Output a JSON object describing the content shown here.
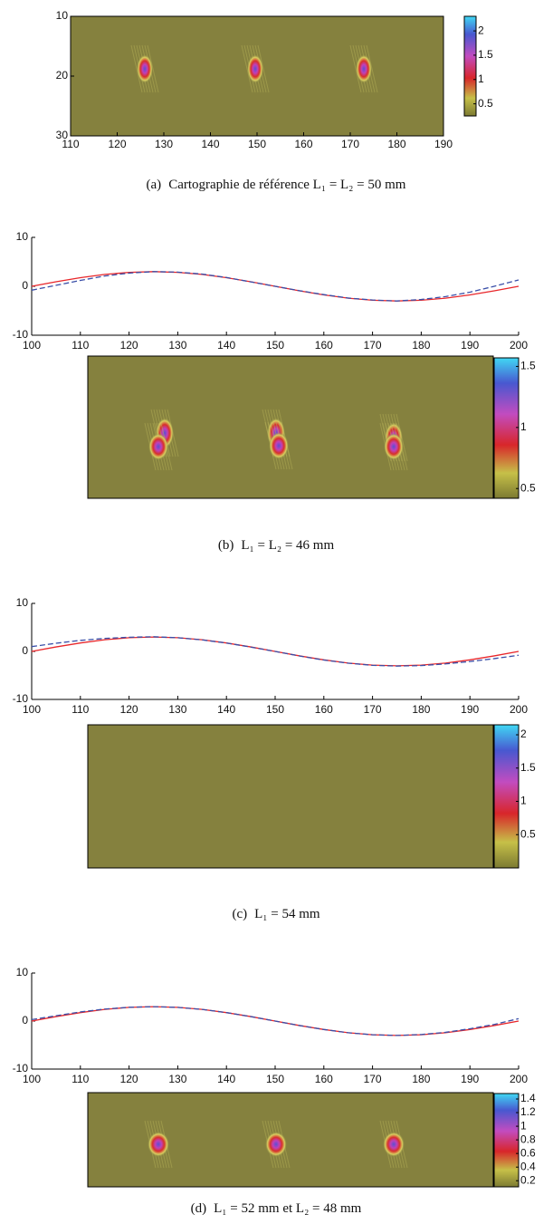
{
  "panels": [
    {
      "label": "(a)",
      "caption": "Cartographie de référence L₁ = L₂ = 50 mm",
      "heatmap": {
        "xlim": [
          110,
          190
        ],
        "xticks": [
          110,
          120,
          130,
          140,
          150,
          160,
          170,
          180,
          190
        ],
        "ylim": [
          30,
          10
        ],
        "yticks": [
          10,
          20,
          30
        ],
        "clim": [
          0.25,
          2.3
        ],
        "colorbar_ticks": [
          0.5,
          1,
          1.5,
          2
        ]
      }
    },
    {
      "label": "(b)",
      "caption": "L₁ = L₂ = 46 mm",
      "line_chart": {
        "type": "line",
        "xlim": [
          100,
          200
        ],
        "xticks": [
          100,
          110,
          120,
          130,
          140,
          150,
          160,
          170,
          180,
          190,
          200
        ],
        "ylim": [
          -10,
          10
        ],
        "yticks": [
          -10,
          0,
          10
        ],
        "x": [
          100,
          105,
          110,
          115,
          120,
          125,
          130,
          135,
          140,
          145,
          150,
          155,
          160,
          165,
          170,
          175,
          180,
          185,
          190,
          195,
          200
        ],
        "series": [
          {
            "color": "#e8262a",
            "linestyle": "solid",
            "values": [
              0,
              0.93,
              1.76,
              2.43,
              2.85,
              3,
              2.85,
              2.43,
              1.76,
              0.93,
              0,
              -0.93,
              -1.76,
              -2.43,
              -2.85,
              -3,
              -2.85,
              -2.43,
              -1.76,
              -0.93,
              0
            ]
          },
          {
            "color": "#3a4fa8",
            "linestyle": "dashed",
            "values": [
              -0.8,
              0.2,
              1.2,
              2.1,
              2.7,
              3,
              2.9,
              2.5,
              1.8,
              0.9,
              0,
              -0.9,
              -1.7,
              -2.4,
              -2.8,
              -3,
              -2.7,
              -2.1,
              -1.2,
              0,
              1.3
            ]
          }
        ]
      },
      "heatmap": {
        "clim": [
          0.42,
          1.57
        ],
        "colorbar_ticks": [
          0.5,
          1,
          1.5
        ]
      }
    },
    {
      "label": "(c)",
      "caption": "L₁ = 54 mm",
      "line_chart": {
        "type": "line",
        "xlim": [
          100,
          200
        ],
        "xticks": [
          100,
          110,
          120,
          130,
          140,
          150,
          160,
          170,
          180,
          190,
          200
        ],
        "ylim": [
          -10,
          10
        ],
        "yticks": [
          -10,
          0,
          10
        ],
        "x": [
          100,
          105,
          110,
          115,
          120,
          125,
          130,
          135,
          140,
          145,
          150,
          155,
          160,
          165,
          170,
          175,
          180,
          185,
          190,
          195,
          200
        ],
        "series": [
          {
            "color": "#e8262a",
            "linestyle": "solid",
            "values": [
              0,
              0.93,
              1.76,
              2.43,
              2.85,
              3,
              2.85,
              2.43,
              1.76,
              0.93,
              0,
              -0.93,
              -1.76,
              -2.43,
              -2.85,
              -3,
              -2.85,
              -2.43,
              -1.76,
              -0.93,
              0
            ]
          },
          {
            "color": "#3a4fa8",
            "linestyle": "dashed",
            "values": [
              1,
              1.7,
              2.3,
              2.7,
              2.95,
              3.05,
              2.85,
              2.4,
              1.75,
              0.9,
              0,
              -0.95,
              -1.8,
              -2.45,
              -2.9,
              -3.05,
              -2.95,
              -2.6,
              -2.1,
              -1.5,
              -0.8
            ]
          }
        ]
      },
      "heatmap": {
        "clim": [
          0,
          2.15
        ],
        "colorbar_ticks": [
          0.5,
          1,
          1.5,
          2
        ]
      }
    },
    {
      "label": "(d)",
      "caption": "L₁ = 52 mm et L₂ = 48 mm",
      "line_chart": {
        "type": "line",
        "xlim": [
          100,
          200
        ],
        "xticks": [
          100,
          110,
          120,
          130,
          140,
          150,
          160,
          170,
          180,
          190,
          200
        ],
        "ylim": [
          -10,
          10
        ],
        "yticks": [
          -10,
          0,
          10
        ],
        "x": [
          100,
          105,
          110,
          115,
          120,
          125,
          130,
          135,
          140,
          145,
          150,
          155,
          160,
          165,
          170,
          175,
          180,
          185,
          190,
          195,
          200
        ],
        "series": [
          {
            "color": "#e8262a",
            "linestyle": "solid",
            "values": [
              0,
              0.93,
              1.76,
              2.43,
              2.85,
              3,
              2.85,
              2.43,
              1.76,
              0.93,
              0,
              -0.93,
              -1.76,
              -2.43,
              -2.85,
              -3,
              -2.85,
              -2.43,
              -1.76,
              -0.93,
              0
            ]
          },
          {
            "color": "#3a4fa8",
            "linestyle": "dashed",
            "values": [
              0.3,
              1.1,
              1.9,
              2.5,
              2.87,
              3,
              2.85,
              2.43,
              1.76,
              0.93,
              0,
              -0.93,
              -1.76,
              -2.43,
              -2.85,
              -3,
              -2.8,
              -2.35,
              -1.6,
              -0.7,
              0.5
            ]
          }
        ]
      },
      "heatmap": {
        "clim": [
          0.11,
          1.48
        ],
        "colorbar_ticks": [
          0.2,
          0.4,
          0.6,
          0.8,
          1,
          1.2,
          1.4
        ]
      }
    }
  ]
}
